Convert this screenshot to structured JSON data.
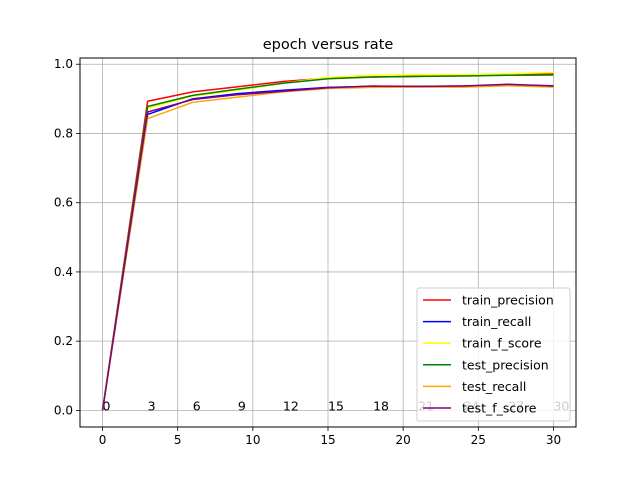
{
  "chart_data": {
    "type": "line",
    "title": "epoch versus rate",
    "xlabel": "",
    "ylabel": "",
    "xlim": [
      -1.5,
      31.5
    ],
    "ylim": [
      -0.048,
      1.018
    ],
    "xticks": [
      0,
      5,
      10,
      15,
      20,
      25,
      30
    ],
    "yticks": [
      0.0,
      0.2,
      0.4,
      0.6,
      0.8,
      1.0
    ],
    "xtick_labels": [
      "0",
      "5",
      "10",
      "15",
      "20",
      "25",
      "30"
    ],
    "ytick_labels": [
      "0.0",
      "0.2",
      "0.4",
      "0.6",
      "0.8",
      "1.0"
    ],
    "grid": true,
    "legend_position": "bottom-right",
    "x": [
      0,
      3,
      6,
      9,
      12,
      15,
      18,
      21,
      24,
      27,
      30
    ],
    "series": [
      {
        "name": "train_precision",
        "color": "#ff0000",
        "values": [
          0.0,
          0.893,
          0.92,
          0.935,
          0.95,
          0.96,
          0.963,
          0.965,
          0.967,
          0.97,
          0.972
        ]
      },
      {
        "name": "train_recall",
        "color": "#0000ff",
        "values": [
          0.0,
          0.855,
          0.9,
          0.915,
          0.925,
          0.933,
          0.936,
          0.936,
          0.937,
          0.94,
          0.938
        ]
      },
      {
        "name": "train_f_score",
        "color": "#ffff00",
        "values": [
          0.0,
          0.873,
          0.908,
          0.925,
          0.945,
          0.962,
          0.968,
          0.97,
          0.97,
          0.972,
          0.976
        ]
      },
      {
        "name": "test_precision",
        "color": "#008000",
        "values": [
          0.0,
          0.878,
          0.91,
          0.928,
          0.945,
          0.958,
          0.963,
          0.965,
          0.966,
          0.968,
          0.969
        ]
      },
      {
        "name": "test_recall",
        "color": "#ffa500",
        "values": [
          0.0,
          0.843,
          0.89,
          0.905,
          0.92,
          0.93,
          0.933,
          0.934,
          0.934,
          0.938,
          0.934
        ]
      },
      {
        "name": "test_f_score",
        "color": "#800080",
        "values": [
          0.0,
          0.862,
          0.898,
          0.912,
          0.922,
          0.932,
          0.937,
          0.936,
          0.937,
          0.942,
          0.937
        ]
      }
    ],
    "annotations": [
      {
        "x": 0,
        "y": 0.0,
        "text": "0"
      },
      {
        "x": 3,
        "y": 0.0,
        "text": "3"
      },
      {
        "x": 6,
        "y": 0.0,
        "text": "6"
      },
      {
        "x": 9,
        "y": 0.0,
        "text": "9"
      },
      {
        "x": 12,
        "y": 0.0,
        "text": "12"
      },
      {
        "x": 15,
        "y": 0.0,
        "text": "15"
      },
      {
        "x": 18,
        "y": 0.0,
        "text": "18"
      },
      {
        "x": 21,
        "y": 0.0,
        "text": "21"
      },
      {
        "x": 24,
        "y": 0.0,
        "text": "24"
      },
      {
        "x": 27,
        "y": 0.0,
        "text": "27"
      },
      {
        "x": 30,
        "y": 0.0,
        "text": "30"
      }
    ]
  }
}
